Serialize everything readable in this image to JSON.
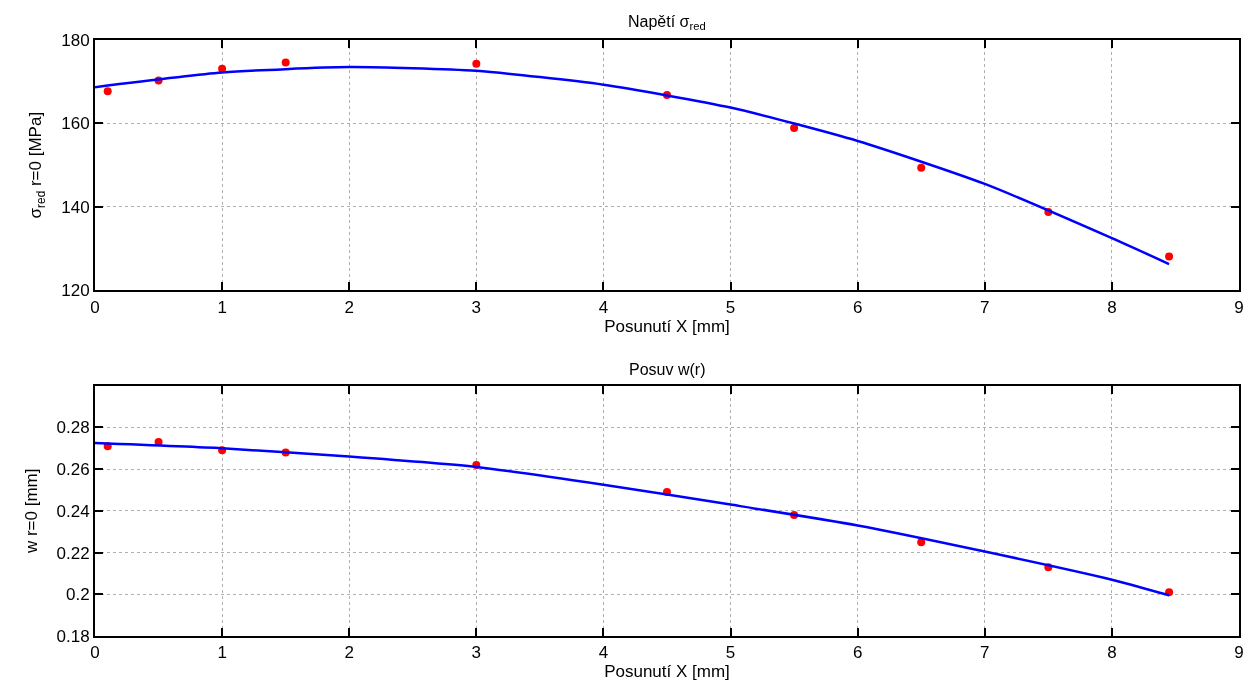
{
  "chart_data": [
    {
      "type": "scatter",
      "title": "Napětí σ$_{red}$",
      "xlabel": "Posunutí X [mm]",
      "ylabel": "σ$_{red}$ r=0 [MPa]",
      "xlim": [
        0,
        9
      ],
      "xticks": [
        0,
        1,
        2,
        3,
        4,
        5,
        6,
        7,
        8,
        9
      ],
      "ylim": [
        120,
        180
      ],
      "yticks": [
        120,
        140,
        160,
        180
      ],
      "grid": true,
      "series": [
        {
          "marker": "circle",
          "color": "#ff0000",
          "x": [
            0.1,
            0.5,
            1,
            1.5,
            3,
            4.5,
            5.5,
            6.5,
            7.5,
            8.45
          ],
          "values": [
            167.7,
            170.3,
            173.1,
            174.6,
            174.3,
            166.8,
            158.9,
            149.4,
            138.8,
            128.1
          ]
        },
        {
          "type": "line",
          "line_style": "solid",
          "color": "#0000ff",
          "x": [
            0,
            1,
            2,
            3,
            4,
            5,
            6,
            7,
            8,
            8.45
          ],
          "values": [
            168.7,
            172.2,
            173.5,
            172.6,
            169.3,
            163.8,
            155.8,
            145.5,
            132.5,
            126.3
          ]
        }
      ]
    },
    {
      "type": "scatter",
      "title": "Posuv w(r)",
      "xlabel": "Posunutí X [mm]",
      "ylabel": "w r=0 [mm]",
      "xlim": [
        0,
        9
      ],
      "xticks": [
        0,
        1,
        2,
        3,
        4,
        5,
        6,
        7,
        8,
        9
      ],
      "ylim": [
        0.18,
        0.3
      ],
      "yticks": [
        0.18,
        0.2,
        0.22,
        0.24,
        0.26,
        0.28
      ],
      "grid": true,
      "series": [
        {
          "marker": "circle",
          "color": "#ff0000",
          "x": [
            0.1,
            0.5,
            1,
            1.5,
            3,
            4.5,
            5.5,
            6.5,
            7.5,
            8.45
          ],
          "values": [
            0.271,
            0.273,
            0.269,
            0.268,
            0.262,
            0.249,
            0.238,
            0.225,
            0.213,
            0.201
          ]
        },
        {
          "type": "line",
          "line_style": "solid",
          "color": "#0000ff",
          "x": [
            0,
            1,
            2,
            3,
            4,
            5,
            6,
            7,
            8,
            8.45
          ],
          "values": [
            0.2725,
            0.27,
            0.266,
            0.261,
            0.2525,
            0.243,
            0.233,
            0.2205,
            0.207,
            0.1995
          ]
        }
      ]
    }
  ]
}
